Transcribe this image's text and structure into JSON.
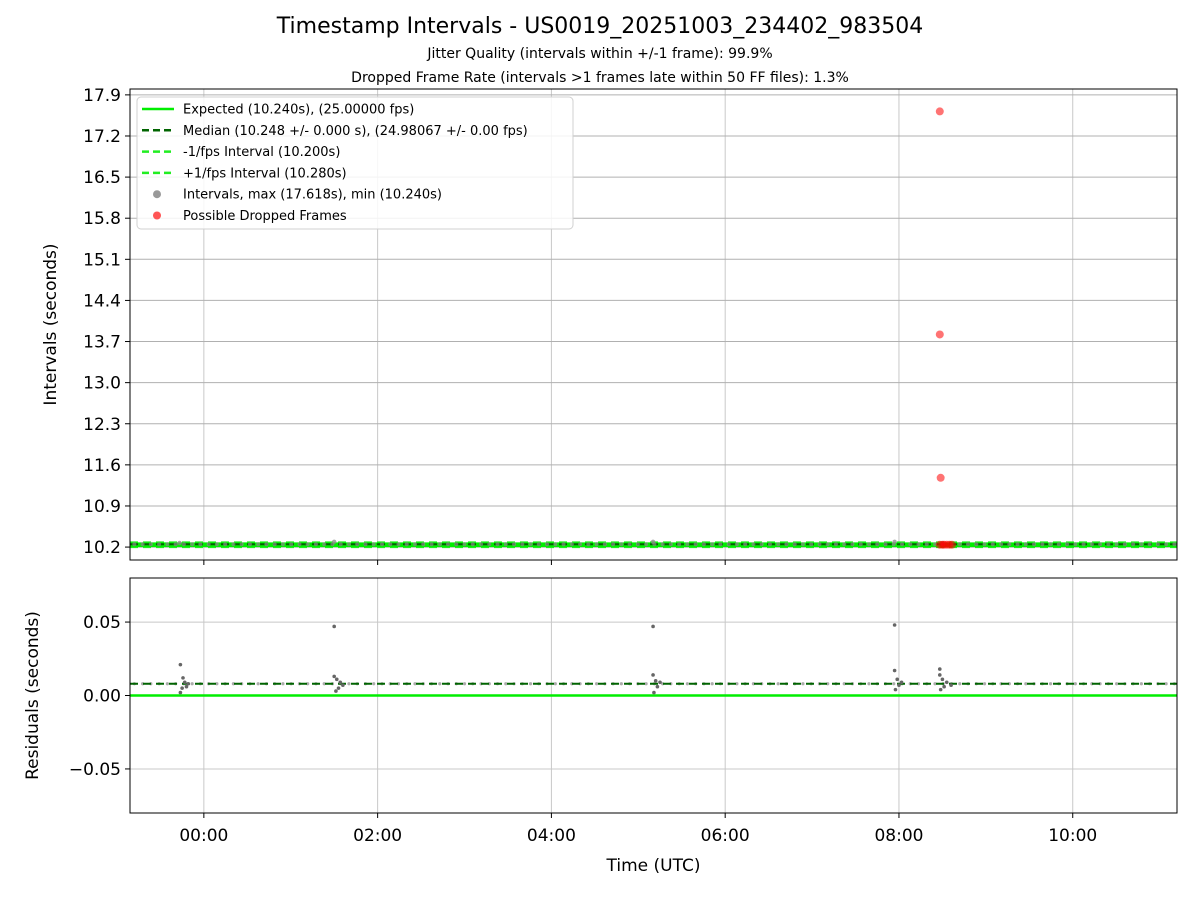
{
  "chart_data": [
    {
      "type": "scatter",
      "panel": "intervals",
      "title": "Timestamp Intervals - US0019_20251003_234402_983504",
      "subtitle_1": "Jitter Quality (intervals within +/-1 frame): 99.9%",
      "subtitle_2": "Dropped Frame Rate (intervals >1 frames late within 50 FF files): 1.3%",
      "xlabel": "",
      "ylabel": "Intervals (seconds)",
      "xlim_hours": [
        -0.85,
        11.2
      ],
      "ylim": [
        9.98,
        18.0
      ],
      "yticks": [
        "10.2",
        "10.9",
        "11.6",
        "12.3",
        "13.0",
        "13.7",
        "14.4",
        "15.1",
        "15.8",
        "16.5",
        "17.2",
        "17.9"
      ],
      "grid": true,
      "legend_position": "top-left",
      "legend": [
        "Expected (10.240s), (25.00000 fps)",
        "Median (10.248 +/- 0.000 s), (24.98067 +/- 0.00 fps)",
        "-1/fps Interval (10.200s)",
        "+1/fps Interval (10.280s)",
        "Intervals, max (17.618s), min (10.240s)",
        "Possible Dropped Frames"
      ],
      "lines": {
        "expected": 10.24,
        "median": 10.248,
        "minus_1fps": 10.2,
        "plus_1fps": 10.28
      },
      "interval_range_hours": [
        -0.85,
        11.2
      ],
      "interval_typical": 10.248,
      "interval_spikes": [
        {
          "x": -0.28,
          "y": 10.27
        },
        {
          "x": 1.5,
          "y": 10.29
        },
        {
          "x": 5.17,
          "y": 10.29
        },
        {
          "x": 7.95,
          "y": 10.29
        },
        {
          "x": 8.5,
          "y": 10.26
        }
      ],
      "dropped_frames": [
        {
          "x": 8.47,
          "y": 17.618
        },
        {
          "x": 8.47,
          "y": 13.82
        },
        {
          "x": 8.48,
          "y": 11.38
        },
        {
          "x": 8.47,
          "y": 10.24
        },
        {
          "x": 8.5,
          "y": 10.24
        },
        {
          "x": 8.52,
          "y": 10.24
        },
        {
          "x": 8.55,
          "y": 10.24
        },
        {
          "x": 8.58,
          "y": 10.24
        },
        {
          "x": 8.61,
          "y": 10.24
        }
      ],
      "colors": {
        "expected": "#00ee00",
        "median": "#006400",
        "fps_bounds": "#22ee22",
        "intervals": "#888888",
        "dropped": "#ff0000"
      }
    },
    {
      "type": "scatter",
      "panel": "residuals",
      "xlabel": "Time (UTC)",
      "ylabel": "Residuals (seconds)",
      "xlim_hours": [
        -0.85,
        11.2
      ],
      "ylim": [
        -0.08,
        0.08
      ],
      "yticks": [
        {
          "value": 0.05,
          "label": "0.05"
        },
        {
          "value": 0.0,
          "label": "0.00"
        },
        {
          "value": -0.05,
          "label": "−0.05"
        }
      ],
      "xticks": [
        {
          "value": 0,
          "label": "00:00"
        },
        {
          "value": 2,
          "label": "02:00"
        },
        {
          "value": 4,
          "label": "04:00"
        },
        {
          "value": 6,
          "label": "06:00"
        },
        {
          "value": 8,
          "label": "08:00"
        },
        {
          "value": 10,
          "label": "10:00"
        }
      ],
      "grid": true,
      "zero_line": 0.0,
      "median_residual": 0.008,
      "residual_points": [
        {
          "x": -0.27,
          "y": 0.021
        },
        {
          "x": -0.27,
          "y": 0.002
        },
        {
          "x": -0.25,
          "y": 0.005
        },
        {
          "x": -0.24,
          "y": 0.012
        },
        {
          "x": -0.22,
          "y": 0.009
        },
        {
          "x": -0.2,
          "y": 0.006
        },
        {
          "x": -0.18,
          "y": 0.008
        },
        {
          "x": 1.5,
          "y": 0.047
        },
        {
          "x": 1.5,
          "y": 0.013
        },
        {
          "x": 1.52,
          "y": 0.003
        },
        {
          "x": 1.53,
          "y": 0.011
        },
        {
          "x": 1.55,
          "y": 0.005
        },
        {
          "x": 1.57,
          "y": 0.009
        },
        {
          "x": 1.6,
          "y": 0.007
        },
        {
          "x": 5.17,
          "y": 0.047
        },
        {
          "x": 5.17,
          "y": 0.014
        },
        {
          "x": 5.18,
          "y": 0.002
        },
        {
          "x": 5.2,
          "y": 0.01
        },
        {
          "x": 5.22,
          "y": 0.006
        },
        {
          "x": 5.25,
          "y": 0.009
        },
        {
          "x": 7.95,
          "y": 0.048
        },
        {
          "x": 7.95,
          "y": 0.017
        },
        {
          "x": 7.96,
          "y": 0.004
        },
        {
          "x": 7.98,
          "y": 0.011
        },
        {
          "x": 8.0,
          "y": 0.007
        },
        {
          "x": 8.03,
          "y": 0.009
        },
        {
          "x": 8.47,
          "y": 0.018
        },
        {
          "x": 8.47,
          "y": 0.014
        },
        {
          "x": 8.48,
          "y": 0.004
        },
        {
          "x": 8.5,
          "y": 0.011
        },
        {
          "x": 8.52,
          "y": 0.006
        },
        {
          "x": 8.55,
          "y": 0.009
        },
        {
          "x": 8.6,
          "y": 0.007
        }
      ]
    }
  ]
}
